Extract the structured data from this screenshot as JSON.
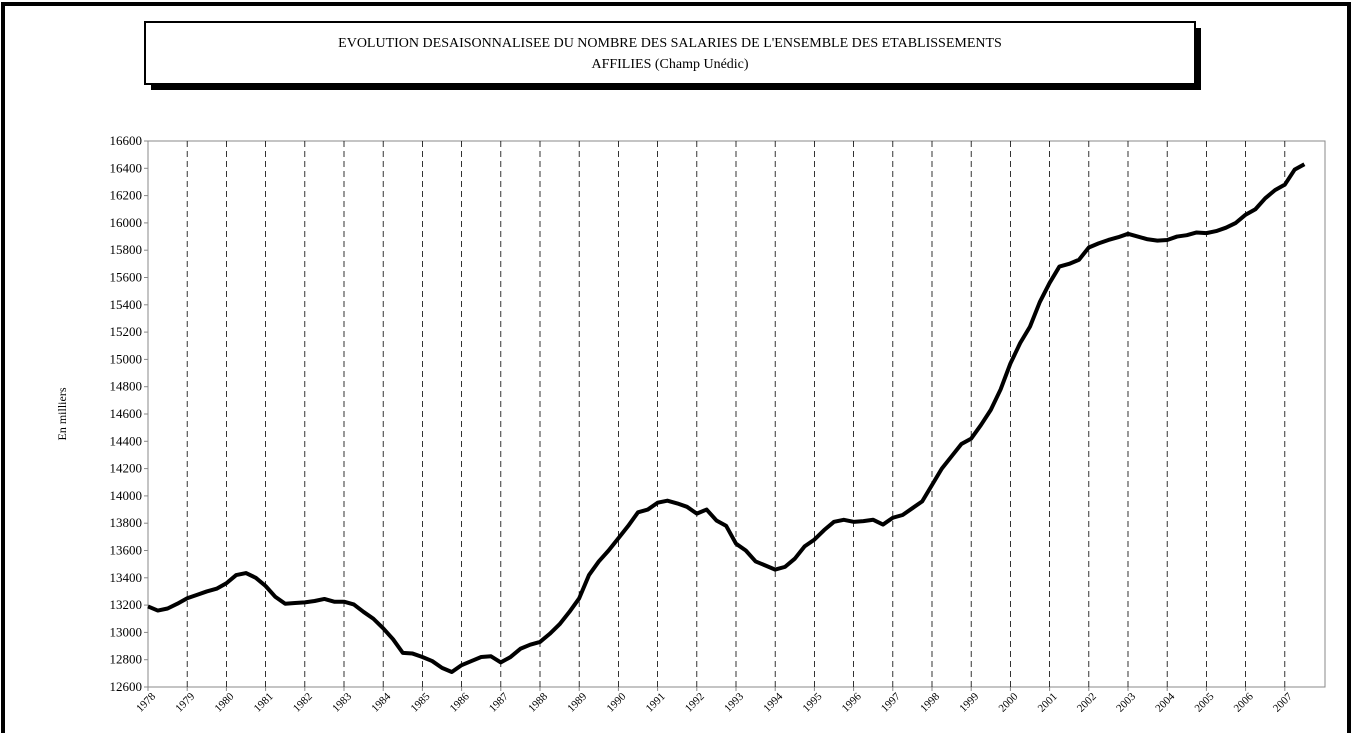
{
  "chart_data": {
    "type": "line",
    "title": "EVOLUTION DESAISONNALISEE DU NOMBRE DES SALARIES DE L'ENSEMBLE DES ETABLISSEMENTS",
    "subtitle": "AFFILIES (Champ Unédic)",
    "y_label": "En milliers",
    "categories": [
      "1978",
      null,
      null,
      null,
      "1979",
      null,
      null,
      null,
      "1980",
      null,
      null,
      null,
      "1981",
      null,
      null,
      null,
      "1982",
      null,
      null,
      null,
      "1983",
      null,
      null,
      null,
      "1984",
      null,
      null,
      null,
      "1985",
      null,
      null,
      null,
      "1986",
      null,
      null,
      null,
      "1987",
      null,
      null,
      null,
      "1988",
      null,
      null,
      null,
      "1989",
      null,
      null,
      null,
      "1990",
      null,
      null,
      null,
      "1991",
      null,
      null,
      null,
      "1992",
      null,
      null,
      null,
      "1993",
      null,
      null,
      null,
      "1994",
      null,
      null,
      null,
      "1995",
      null,
      null,
      null,
      "1996",
      null,
      null,
      null,
      "1997",
      null,
      null,
      null,
      "1998",
      null,
      null,
      null,
      "1999",
      null,
      null,
      null,
      "2000",
      null,
      null,
      null,
      "2001",
      null,
      null,
      null,
      "2002",
      null,
      null,
      null,
      "2003",
      null,
      null,
      null,
      "2004",
      null,
      null,
      null,
      "2005",
      null,
      null,
      null,
      "2006",
      null,
      null,
      null,
      "2007",
      null,
      null
    ],
    "values": [
      13190,
      13160,
      13175,
      13210,
      13250,
      13275,
      13300,
      13320,
      13360,
      13420,
      13435,
      13400,
      13340,
      13260,
      13210,
      13215,
      13220,
      13230,
      13245,
      13225,
      13225,
      13205,
      13150,
      13100,
      13030,
      12950,
      12850,
      12845,
      12820,
      12790,
      12740,
      12710,
      12760,
      12790,
      12820,
      12825,
      12780,
      12820,
      12880,
      12910,
      12930,
      12990,
      13060,
      13150,
      13250,
      13420,
      13520,
      13600,
      13690,
      13780,
      13880,
      13900,
      13950,
      13965,
      13945,
      13920,
      13870,
      13900,
      13820,
      13780,
      13650,
      13600,
      13520,
      13490,
      13460,
      13480,
      13540,
      13630,
      13680,
      13750,
      13810,
      13825,
      13810,
      13815,
      13825,
      13790,
      13840,
      13860,
      13910,
      13960,
      14080,
      14200,
      14290,
      14380,
      14420,
      14520,
      14630,
      14780,
      14970,
      15120,
      15240,
      15420,
      15560,
      15680,
      15700,
      15730,
      15820,
      15850,
      15875,
      15895,
      15920,
      15900,
      15880,
      15870,
      15875,
      15900,
      15910,
      15930,
      15925,
      15940,
      15965,
      16000,
      16060,
      16100,
      16180,
      16240,
      16280,
      16390,
      16430
    ],
    "color": "#000000",
    "ylim": [
      12600,
      16600
    ],
    "yticks": [
      12600,
      12800,
      13000,
      13200,
      13400,
      13600,
      13800,
      14000,
      14200,
      14400,
      14600,
      14800,
      15000,
      15200,
      15400,
      15600,
      15800,
      16000,
      16200,
      16400,
      16600
    ],
    "grid": true
  }
}
